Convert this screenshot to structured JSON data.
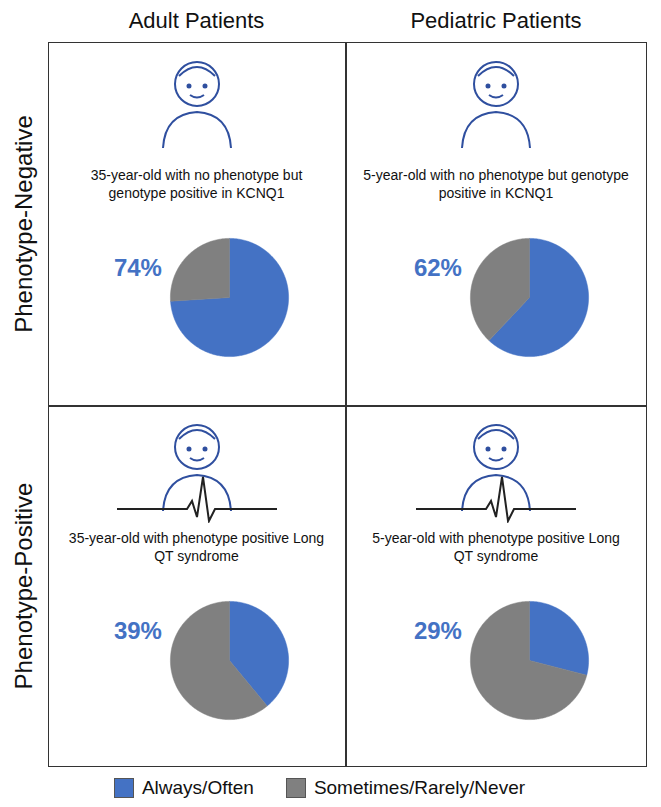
{
  "column_headers": [
    "Adult Patients",
    "Pediatric Patients"
  ],
  "row_headers": [
    "Phenotype-Negative",
    "Phenotype-Positive"
  ],
  "chart_data": [
    {
      "type": "pie",
      "title": "35-year-old with no phenotype but genotype positive in KCNQ1",
      "categories": [
        "Always/Often",
        "Sometimes/Rarely/Never"
      ],
      "values": [
        74,
        26
      ],
      "value_labels": [
        "74%",
        null
      ],
      "colors": [
        "#4472c4",
        "#808080"
      ],
      "data_labels": true,
      "legend": "bottom"
    },
    {
      "type": "pie",
      "title": "5-year-old with no phenotype but genotype positive in KCNQ1",
      "categories": [
        "Always/Often",
        "Sometimes/Rarely/Never"
      ],
      "values": [
        62,
        38
      ],
      "value_labels": [
        "62%",
        null
      ],
      "colors": [
        "#4472c4",
        "#808080"
      ],
      "data_labels": true,
      "legend": "bottom"
    },
    {
      "type": "pie",
      "title": "35-year-old with phenotype positive Long QT syndrome",
      "categories": [
        "Always/Often",
        "Sometimes/Rarely/Never"
      ],
      "values": [
        39,
        61
      ],
      "value_labels": [
        "39%",
        null
      ],
      "colors": [
        "#4472c4",
        "#808080"
      ],
      "data_labels": true,
      "legend": "bottom"
    },
    {
      "type": "pie",
      "title": "5-year-old with phenotype positive Long QT syndrome",
      "categories": [
        "Always/Often",
        "Sometimes/Rarely/Never"
      ],
      "values": [
        29,
        71
      ],
      "value_labels": [
        "29%",
        null
      ],
      "colors": [
        "#4472c4",
        "#808080"
      ],
      "data_labels": true,
      "legend": "bottom"
    }
  ]
}
